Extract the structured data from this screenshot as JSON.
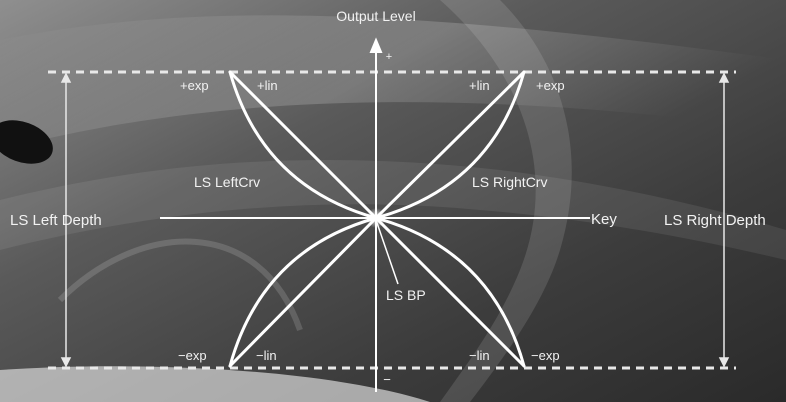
{
  "diagram": {
    "title": "Output Level",
    "axis_plus": "+",
    "axis_minus": "−",
    "key_label": "Key",
    "left_depth_label": "LS Left Depth",
    "right_depth_label": "LS Right Depth",
    "left_curve_label": "LS LeftCrv",
    "right_curve_label": "LS RightCrv",
    "breakpoint_label": "LS BP",
    "curve_labels": {
      "top_left_exp": "+exp",
      "top_left_lin": "+lin",
      "top_right_lin": "+lin",
      "top_right_exp": "+exp",
      "bottom_left_exp": "−exp",
      "bottom_left_lin": "−lin",
      "bottom_right_lin": "−lin",
      "bottom_right_exp": "−exp"
    }
  },
  "colors": {
    "line": "#ffffff",
    "text": "#f2f2f2",
    "guide": "#e8e8e8"
  }
}
